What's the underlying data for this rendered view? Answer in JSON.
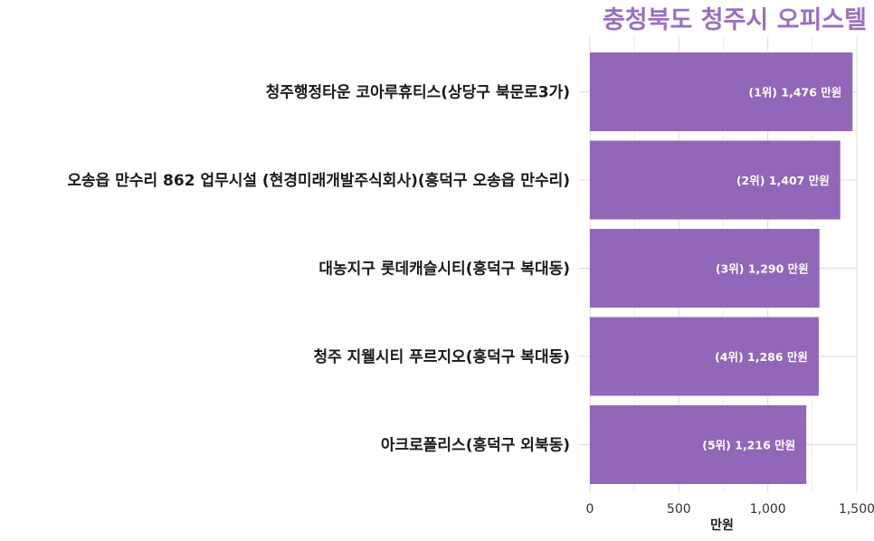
{
  "chart_data": {
    "type": "bar",
    "orientation": "horizontal",
    "title": "충청북도 청주시 오피스텔",
    "xlabel": "만원",
    "ylabel": "",
    "xlim": [
      0,
      1500
    ],
    "xticks": [
      0,
      500,
      1000,
      1500
    ],
    "xtick_labels": [
      "0",
      "500",
      "1,000",
      "1,500"
    ],
    "grid": true,
    "color": "#9266b8",
    "title_color": "#9b6fc3",
    "categories": [
      "청주행정타운 코아루휴티스(상당구 북문로3가)",
      "오송읍 만수리 862 업무시설 (현경미래개발주식회사)(흥덕구 오송읍 만수리)",
      "대농지구 롯데캐슬시티(흥덕구 복대동)",
      "청주 지웰시티 푸르지오(흥덕구 복대동)",
      "아크로폴리스(흥덕구 외북동)"
    ],
    "values": [
      1476,
      1407,
      1290,
      1286,
      1216
    ],
    "bar_labels": [
      "(1위) 1,476 만원",
      "(2위) 1,407 만원",
      "(3위) 1,290 만원",
      "(4위) 1,286 만원",
      "(5위) 1,216 만원"
    ]
  }
}
